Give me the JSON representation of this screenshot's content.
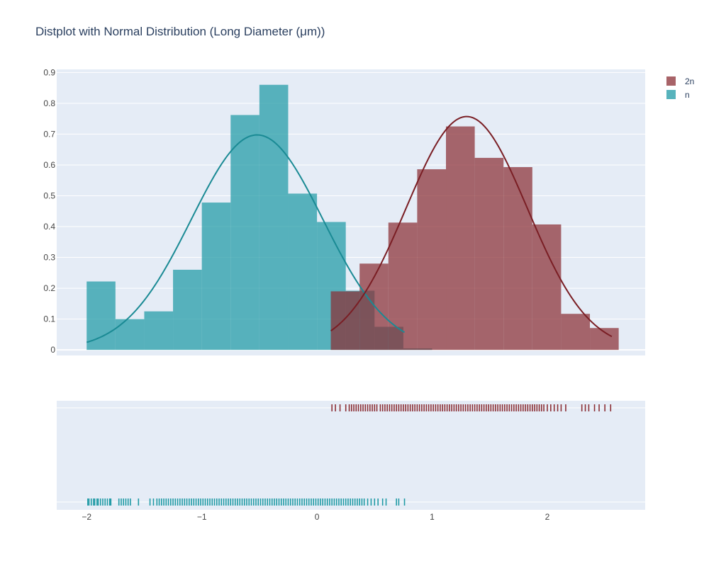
{
  "chart_data": {
    "type": "distplot",
    "title": "Distplot with Normal Distribution (Long Diameter (μm))",
    "x_ticks": [
      -2,
      -1,
      0,
      1,
      2
    ],
    "y_ticks": [
      0,
      0.1,
      0.2,
      0.3,
      0.4,
      0.5,
      0.6,
      0.7,
      0.8,
      0.9
    ],
    "y_tick_labels": [
      "0",
      "0.1",
      "0.2",
      "0.3",
      "0.4",
      "0.5",
      "0.6",
      "0.7",
      "0.8",
      "0.9"
    ],
    "x_tick_labels": [
      "−2",
      "−1",
      "0",
      "1",
      "2"
    ],
    "xlim": [
      -2.26,
      2.85
    ],
    "ylim": [
      -0.018,
      0.91
    ],
    "legend_placement": "top-right",
    "grid": true,
    "colors": {
      "plot_bg": "#E5ECF6",
      "grid": "#FFFFFF",
      "text": "#2A3F5F",
      "tick_text": "#444444"
    },
    "series": [
      {
        "name": "n",
        "color": "#1F9AA5",
        "curve_color": "#1A8A94",
        "hist": {
          "bin_edges": [
            -2.0,
            -1.75,
            -1.5,
            -1.25,
            -1.0,
            -0.75,
            -0.5,
            -0.25,
            0.0,
            0.25,
            0.5,
            0.75,
            1.0
          ],
          "values": [
            0.222,
            0.1,
            0.125,
            0.26,
            0.478,
            0.762,
            0.86,
            0.507,
            0.415,
            0.192,
            0.075,
            0.005
          ]
        },
        "normal": {
          "mean": -0.52,
          "std": 0.572,
          "x_start": -2.0,
          "x_end": 0.76
        },
        "rug": [
          -1.99,
          -1.98,
          -1.96,
          -1.94,
          -1.93,
          -1.91,
          -1.9,
          -1.88,
          -1.86,
          -1.84,
          -1.82,
          -1.8,
          -1.79,
          -1.72,
          -1.7,
          -1.68,
          -1.66,
          -1.64,
          -1.62,
          -1.55,
          -1.45,
          -1.42,
          -1.39,
          -1.37,
          -1.35,
          -1.33,
          -1.31,
          -1.29,
          -1.27,
          -1.25,
          -1.23,
          -1.21,
          -1.19,
          -1.17,
          -1.15,
          -1.13,
          -1.11,
          -1.09,
          -1.07,
          -1.05,
          -1.03,
          -1.01,
          -0.99,
          -0.97,
          -0.95,
          -0.93,
          -0.91,
          -0.89,
          -0.87,
          -0.85,
          -0.83,
          -0.81,
          -0.79,
          -0.77,
          -0.75,
          -0.73,
          -0.71,
          -0.69,
          -0.67,
          -0.65,
          -0.63,
          -0.61,
          -0.59,
          -0.57,
          -0.55,
          -0.53,
          -0.51,
          -0.49,
          -0.47,
          -0.45,
          -0.43,
          -0.41,
          -0.39,
          -0.37,
          -0.35,
          -0.33,
          -0.31,
          -0.29,
          -0.27,
          -0.25,
          -0.23,
          -0.21,
          -0.19,
          -0.17,
          -0.15,
          -0.13,
          -0.11,
          -0.09,
          -0.07,
          -0.05,
          -0.03,
          -0.01,
          0.01,
          0.03,
          0.05,
          0.07,
          0.09,
          0.11,
          0.13,
          0.15,
          0.17,
          0.19,
          0.21,
          0.23,
          0.25,
          0.27,
          0.29,
          0.31,
          0.33,
          0.35,
          0.37,
          0.39,
          0.41,
          0.44,
          0.47,
          0.5,
          0.53,
          0.57,
          0.6,
          0.69,
          0.71,
          0.76
        ]
      },
      {
        "name": "2n",
        "color": "#8B2F35",
        "curve_color": "#7A1E24",
        "hist": {
          "bin_edges": [
            0.12,
            0.37,
            0.62,
            0.87,
            1.12,
            1.37,
            1.62,
            1.87,
            2.12,
            2.37,
            2.62
          ],
          "values": [
            0.19,
            0.28,
            0.413,
            0.586,
            0.725,
            0.623,
            0.593,
            0.407,
            0.117,
            0.071
          ]
        },
        "normal": {
          "mean": 1.3,
          "std": 0.527,
          "x_start": 0.12,
          "x_end": 2.56
        },
        "rug": [
          0.13,
          0.16,
          0.2,
          0.25,
          0.28,
          0.3,
          0.32,
          0.34,
          0.36,
          0.38,
          0.4,
          0.42,
          0.44,
          0.46,
          0.48,
          0.52,
          0.5,
          0.55,
          0.57,
          0.59,
          0.61,
          0.63,
          0.65,
          0.67,
          0.69,
          0.71,
          0.73,
          0.75,
          0.77,
          0.79,
          0.81,
          0.83,
          0.85,
          0.87,
          0.89,
          0.91,
          0.93,
          0.95,
          0.97,
          0.99,
          1.01,
          1.03,
          1.05,
          1.07,
          1.09,
          1.11,
          1.13,
          1.15,
          1.17,
          1.19,
          1.21,
          1.23,
          1.25,
          1.27,
          1.29,
          1.31,
          1.33,
          1.35,
          1.37,
          1.39,
          1.41,
          1.43,
          1.45,
          1.47,
          1.49,
          1.51,
          1.53,
          1.55,
          1.57,
          1.59,
          1.61,
          1.63,
          1.65,
          1.67,
          1.69,
          1.71,
          1.73,
          1.75,
          1.77,
          1.79,
          1.81,
          1.83,
          1.85,
          1.87,
          1.89,
          1.91,
          1.93,
          1.95,
          1.97,
          2.0,
          2.03,
          2.06,
          2.09,
          2.12,
          2.16,
          2.3,
          2.33,
          2.36,
          2.41,
          2.45,
          2.5,
          2.55
        ]
      }
    ]
  }
}
